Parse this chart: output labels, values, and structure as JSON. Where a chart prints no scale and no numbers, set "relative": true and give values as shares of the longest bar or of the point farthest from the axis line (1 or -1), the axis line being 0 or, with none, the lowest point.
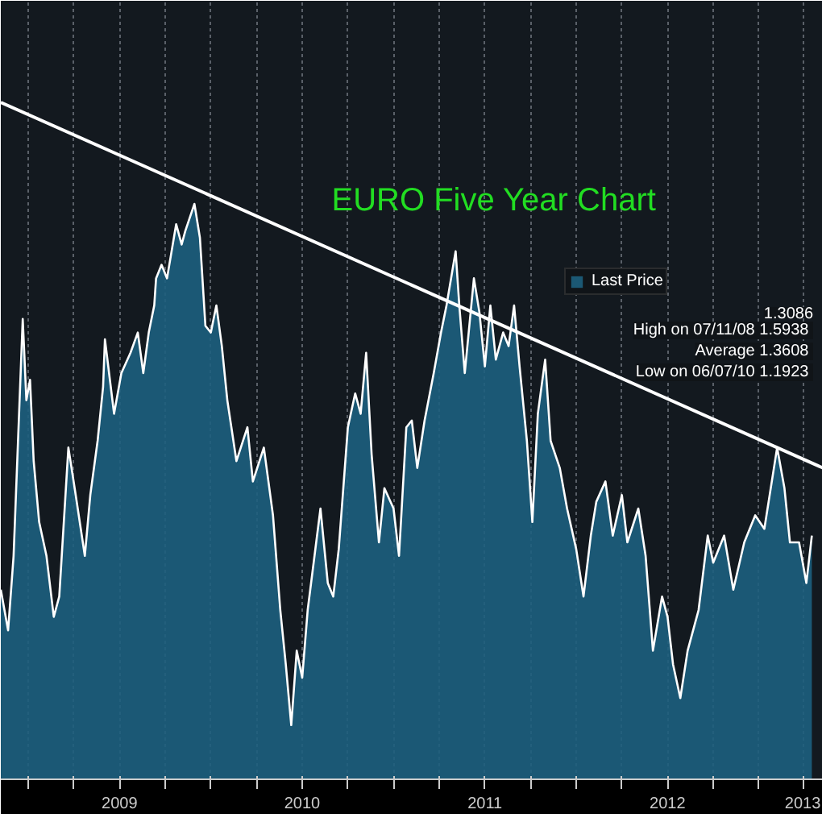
{
  "chart_data": {
    "type": "area",
    "title": "EURO Five Year Chart",
    "relative": true,
    "legend": "top right",
    "grid": "x",
    "xlim": [
      2008.85,
      2013.35
    ],
    "xticks": [
      {
        "value": 2009,
        "label": null
      },
      {
        "value": 2009.25,
        "label": null
      },
      {
        "value": 2009.5,
        "label": "2009"
      },
      {
        "value": 2009.75,
        "label": null
      },
      {
        "value": 2010,
        "label": null
      },
      {
        "value": 2010.25,
        "label": null
      },
      {
        "value": 2010.5,
        "label": "2010"
      },
      {
        "value": 2010.75,
        "label": null
      },
      {
        "value": 2011,
        "label": null
      },
      {
        "value": 2011.25,
        "label": null
      },
      {
        "value": 2011.5,
        "label": "2011"
      },
      {
        "value": 2011.75,
        "label": null
      },
      {
        "value": 2012,
        "label": null
      },
      {
        "value": 2012.25,
        "label": null
      },
      {
        "value": 2012.5,
        "label": "2012"
      },
      {
        "value": 2012.75,
        "label": null
      },
      {
        "value": 2013,
        "label": null
      },
      {
        "value": 2013.24,
        "label": "2013"
      }
    ],
    "annotations": [
      "1.3086",
      "High on 07/11/08  1.5938",
      "Average  1.3608",
      "Low on 06/07/10  1.1923"
    ],
    "series": [
      {
        "name": "Last Price",
        "color": "#1d5f7e",
        "x": [
          2008.85,
          2008.89,
          2008.92,
          2008.97,
          2008.99,
          2009.01,
          2009.03,
          2009.06,
          2009.1,
          2009.14,
          2009.17,
          2009.22,
          2009.26,
          2009.31,
          2009.34,
          2009.38,
          2009.41,
          2009.42,
          2009.47,
          2009.51,
          2009.56,
          2009.6,
          2009.63,
          2009.66,
          2009.69,
          2009.7,
          2009.73,
          2009.76,
          2009.81,
          2009.84,
          2009.86,
          2009.91,
          2009.94,
          2009.97,
          2010.0,
          2010.03,
          2010.06,
          2010.09,
          2010.14,
          2010.2,
          2010.23,
          2010.29,
          2010.34,
          2010.38,
          2010.41,
          2010.44,
          2010.47,
          2010.5,
          2010.53,
          2010.6,
          2010.64,
          2010.67,
          2010.7,
          2010.75,
          2010.79,
          2010.82,
          2010.85,
          2010.88,
          2010.92,
          2010.95,
          2011.0,
          2011.03,
          2011.07,
          2011.1,
          2011.13,
          2011.17,
          2011.22,
          2011.26,
          2011.29,
          2011.34,
          2011.36,
          2011.39,
          2011.44,
          2011.47,
          2011.5,
          2011.53,
          2011.56,
          2011.6,
          2011.63,
          2011.66,
          2011.69,
          2011.73,
          2011.76,
          2011.79,
          2011.83,
          2011.86,
          2011.91,
          2011.95,
          2012.0,
          2012.04,
          2012.08,
          2012.11,
          2012.16,
          2012.2,
          2012.25,
          2012.28,
          2012.34,
          2012.38,
          2012.42,
          2012.47,
          2012.5,
          2012.53,
          2012.57,
          2012.61,
          2012.67,
          2012.72,
          2012.75,
          2012.81,
          2012.86,
          2012.92,
          2012.98,
          2013.03,
          2013.1,
          2013.14,
          2013.17,
          2013.22,
          2013.26,
          2013.29
        ],
        "values": [
          0.28,
          0.22,
          0.33,
          0.68,
          0.56,
          0.59,
          0.47,
          0.38,
          0.33,
          0.24,
          0.27,
          0.49,
          0.42,
          0.33,
          0.42,
          0.5,
          0.58,
          0.65,
          0.54,
          0.6,
          0.63,
          0.66,
          0.6,
          0.66,
          0.7,
          0.74,
          0.76,
          0.74,
          0.82,
          0.79,
          0.81,
          0.85,
          0.8,
          0.67,
          0.66,
          0.7,
          0.64,
          0.56,
          0.47,
          0.52,
          0.44,
          0.49,
          0.39,
          0.25,
          0.17,
          0.08,
          0.19,
          0.15,
          0.25,
          0.4,
          0.29,
          0.27,
          0.34,
          0.52,
          0.57,
          0.54,
          0.63,
          0.48,
          0.35,
          0.43,
          0.4,
          0.33,
          0.52,
          0.53,
          0.46,
          0.53,
          0.6,
          0.66,
          0.7,
          0.78,
          0.7,
          0.6,
          0.74,
          0.69,
          0.61,
          0.7,
          0.62,
          0.66,
          0.64,
          0.7,
          0.61,
          0.5,
          0.38,
          0.54,
          0.62,
          0.5,
          0.46,
          0.4,
          0.34,
          0.27,
          0.36,
          0.41,
          0.44,
          0.36,
          0.42,
          0.35,
          0.4,
          0.33,
          0.19,
          0.27,
          0.24,
          0.17,
          0.12,
          0.19,
          0.25,
          0.36,
          0.32,
          0.36,
          0.28,
          0.35,
          0.39,
          0.37,
          0.49,
          0.43,
          0.35,
          0.35,
          0.29,
          0.36
        ]
      },
      {
        "type": "line",
        "color": "#ffffff",
        "x": [
          2008.85,
          2013.35
        ],
        "values": [
          1.0,
          0.46
        ]
      }
    ]
  }
}
